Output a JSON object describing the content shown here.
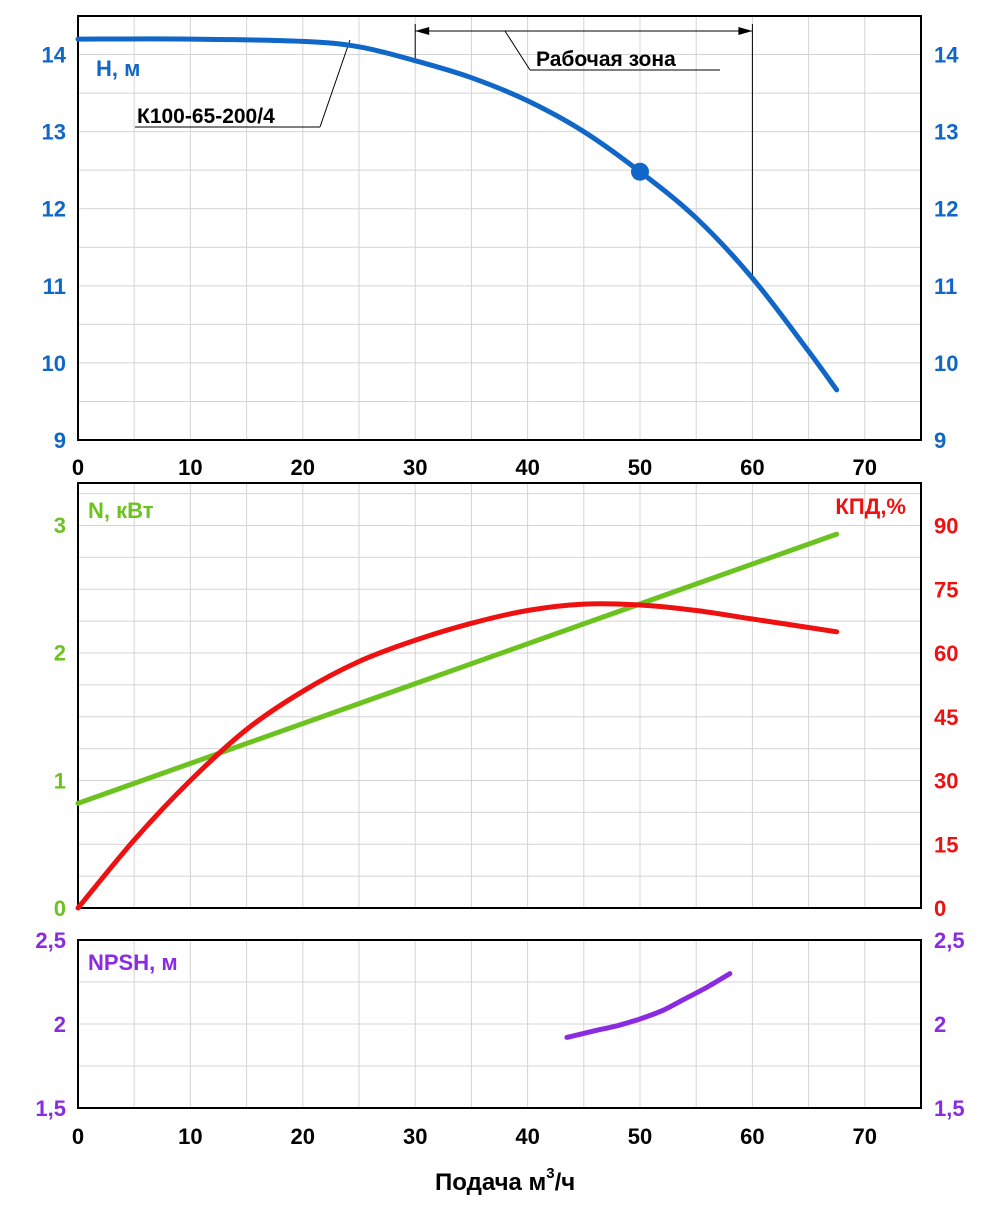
{
  "chart_data": [
    {
      "type": "line",
      "panel": "head",
      "ylabel": "H, м",
      "xlim": [
        0,
        75
      ],
      "ylim": [
        9,
        14.5
      ],
      "x_ticks": [
        0,
        10,
        20,
        30,
        40,
        50,
        60,
        70
      ],
      "y_ticks": [
        9,
        10,
        11,
        12,
        13,
        14
      ],
      "grid": true,
      "series": [
        {
          "name": "К100-65-200/4",
          "color": "#1167c8",
          "x": [
            0,
            10,
            20,
            25,
            30,
            35,
            40,
            45,
            50,
            55,
            60,
            65,
            67.5
          ],
          "y": [
            14.2,
            14.2,
            14.17,
            14.1,
            13.92,
            13.7,
            13.4,
            13.0,
            12.48,
            11.88,
            11.1,
            10.15,
            9.65
          ]
        }
      ],
      "marker": {
        "x": 50,
        "y": 12.48
      },
      "work_zone": {
        "label": "Рабочая зона",
        "x_from": 30,
        "x_to": 60
      },
      "curve_label": "К100-65-200/4"
    },
    {
      "type": "line",
      "panel": "power-efficiency",
      "ylabel_left": "N, кВт",
      "ylabel_right": "КПД,%",
      "xlim": [
        0,
        75
      ],
      "ylim_left": [
        0,
        3.33
      ],
      "ylim_right": [
        0,
        100
      ],
      "x_ticks": [
        0,
        10,
        20,
        30,
        40,
        50,
        60,
        70
      ],
      "y_ticks_left": [
        0,
        1,
        2,
        3
      ],
      "y_ticks_right": [
        0,
        15,
        30,
        45,
        60,
        75,
        90
      ],
      "grid": true,
      "series": [
        {
          "name": "N, кВт",
          "axis": "left",
          "color": "#6cc31f",
          "x": [
            0,
            67.5
          ],
          "y": [
            0.82,
            2.93
          ]
        },
        {
          "name": "КПД,%",
          "axis": "right",
          "color": "#ee1111",
          "x": [
            0,
            5,
            10,
            15,
            20,
            25,
            30,
            35,
            40,
            45,
            50,
            55,
            60,
            65,
            67.5
          ],
          "y": [
            0,
            16,
            30,
            42,
            51,
            58,
            63,
            67,
            70,
            71.5,
            71.3,
            70,
            68,
            66,
            65
          ]
        }
      ]
    },
    {
      "type": "line",
      "panel": "npsh",
      "ylabel": "NPSH, м",
      "xlabel": "Подача м³/ч",
      "xlim": [
        0,
        75
      ],
      "ylim": [
        1.5,
        2.5
      ],
      "x_ticks": [
        0,
        10,
        20,
        30,
        40,
        50,
        60,
        70
      ],
      "y_ticks": [
        "1,5",
        "2",
        "2,5"
      ],
      "y_tick_values": [
        1.5,
        2,
        2.5
      ],
      "grid": true,
      "series": [
        {
          "name": "NPSH, м",
          "color": "#8a2be2",
          "x": [
            43.5,
            46,
            48,
            50,
            52,
            54,
            56,
            58
          ],
          "y": [
            1.92,
            1.96,
            1.99,
            2.03,
            2.08,
            2.15,
            2.22,
            2.3
          ]
        }
      ]
    }
  ],
  "labels": {
    "xlabel_main": "Подача м",
    "xlabel_sup": "3",
    "xlabel_tail": "/ч"
  },
  "colors": {
    "head": "#1167c8",
    "power": "#6cc31f",
    "efficiency": "#ee1111",
    "npsh": "#8a2be2"
  }
}
